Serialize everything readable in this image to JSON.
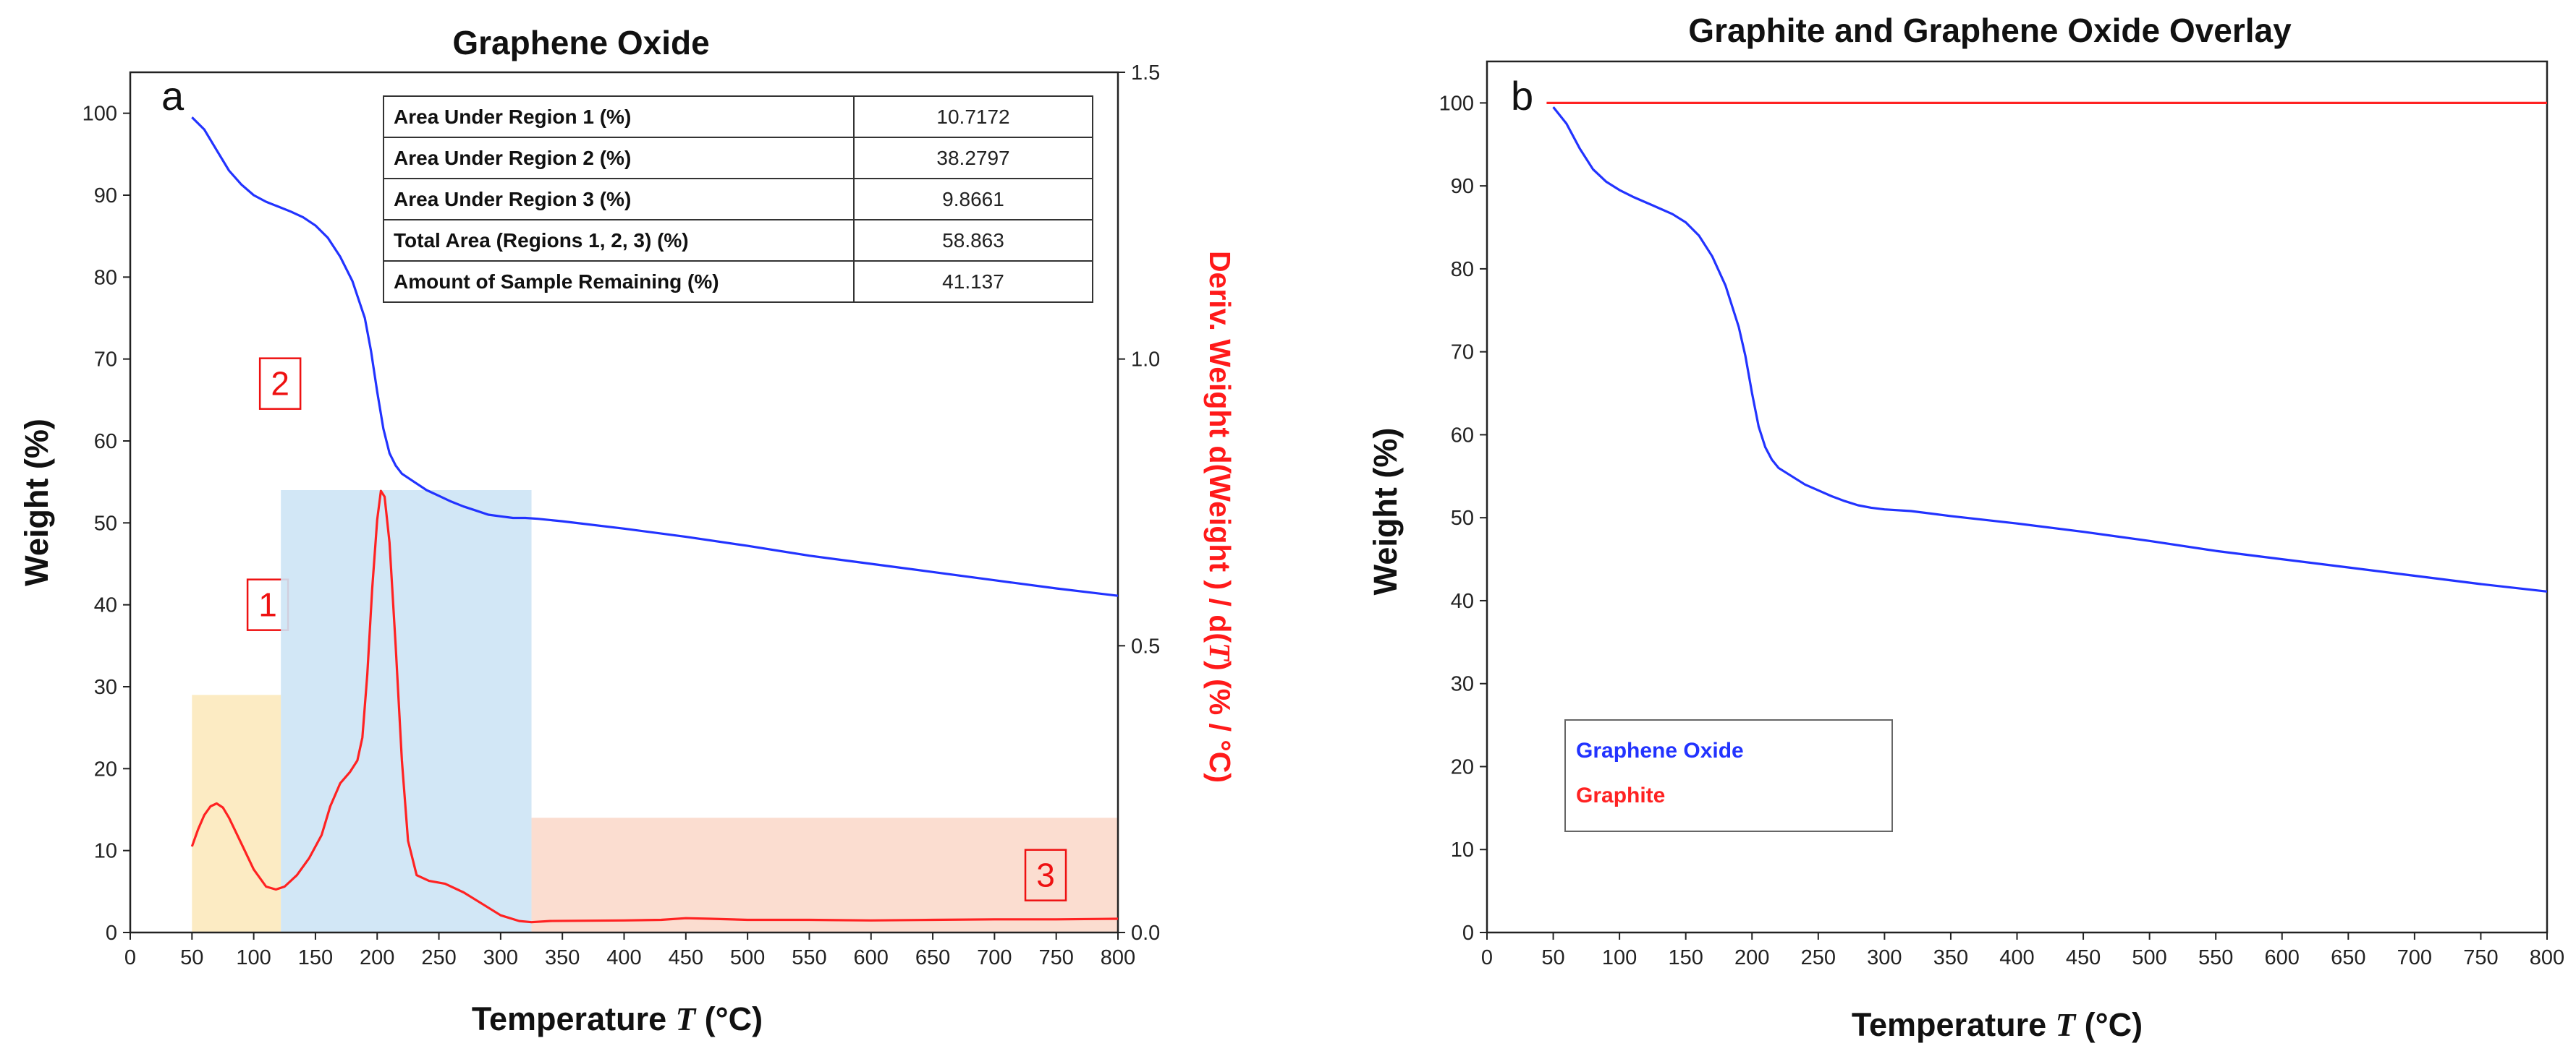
{
  "chart_data": [
    {
      "panel_label": "a",
      "type": "line",
      "title": "Graphene Oxide",
      "xlabel_prefix": "Temperature",
      "xlabel_symbol": "T",
      "xlabel_suffix": "(°C)",
      "ylabel": "Weight  (%)",
      "y2label_parts": [
        "Deriv. Weight d(Weight ) / d(",
        "T",
        ")  (% / °C)"
      ],
      "xlim": [
        0,
        800
      ],
      "ylim": [
        0,
        105
      ],
      "y2lim": [
        0,
        1.5
      ],
      "x_ticks": [
        0,
        50,
        100,
        150,
        200,
        250,
        300,
        350,
        400,
        450,
        500,
        550,
        600,
        650,
        700,
        750,
        800
      ],
      "y_ticks": [
        0,
        10,
        20,
        30,
        40,
        50,
        60,
        70,
        80,
        90,
        100
      ],
      "y2_ticks": [
        "0.0",
        "0.5",
        "1.0",
        "1.5"
      ],
      "series": [
        {
          "name": "Weight",
          "axis": "left",
          "color": "#2233ff",
          "points": [
            [
              50,
              99.5
            ],
            [
              60,
              98
            ],
            [
              70,
              95.5
            ],
            [
              80,
              93
            ],
            [
              90,
              91.3
            ],
            [
              100,
              90
            ],
            [
              110,
              89.2
            ],
            [
              120,
              88.6
            ],
            [
              130,
              88
            ],
            [
              140,
              87.3
            ],
            [
              150,
              86.3
            ],
            [
              160,
              84.8
            ],
            [
              170,
              82.5
            ],
            [
              180,
              79.5
            ],
            [
              190,
              75
            ],
            [
              195,
              71
            ],
            [
              200,
              66
            ],
            [
              205,
              61.5
            ],
            [
              210,
              58.5
            ],
            [
              215,
              57
            ],
            [
              220,
              56
            ],
            [
              230,
              55
            ],
            [
              240,
              54
            ],
            [
              250,
              53.3
            ],
            [
              260,
              52.6
            ],
            [
              270,
              52
            ],
            [
              280,
              51.5
            ],
            [
              290,
              51
            ],
            [
              300,
              50.8
            ],
            [
              310,
              50.6
            ],
            [
              320,
              50.6
            ],
            [
              330,
              50.5
            ],
            [
              350,
              50.2
            ],
            [
              400,
              49.3
            ],
            [
              450,
              48.3
            ],
            [
              500,
              47.2
            ],
            [
              550,
              46
            ],
            [
              600,
              45
            ],
            [
              650,
              44
            ],
            [
              700,
              43
            ],
            [
              750,
              42
            ],
            [
              800,
              41.1
            ]
          ]
        },
        {
          "name": "Deriv. Weight",
          "axis": "right",
          "color": "#ff2222",
          "points": [
            [
              50,
              0.15
            ],
            [
              55,
              0.18
            ],
            [
              60,
              0.205
            ],
            [
              65,
              0.22
            ],
            [
              70,
              0.225
            ],
            [
              75,
              0.218
            ],
            [
              80,
              0.2
            ],
            [
              90,
              0.155
            ],
            [
              100,
              0.11
            ],
            [
              110,
              0.08
            ],
            [
              118,
              0.075
            ],
            [
              125,
              0.08
            ],
            [
              135,
              0.1
            ],
            [
              145,
              0.13
            ],
            [
              155,
              0.17
            ],
            [
              162,
              0.22
            ],
            [
              170,
              0.26
            ],
            [
              178,
              0.28
            ],
            [
              184,
              0.3
            ],
            [
              188,
              0.34
            ],
            [
              192,
              0.45
            ],
            [
              196,
              0.6
            ],
            [
              200,
              0.72
            ],
            [
              203,
              0.77
            ],
            [
              206,
              0.76
            ],
            [
              210,
              0.68
            ],
            [
              215,
              0.5
            ],
            [
              220,
              0.3
            ],
            [
              225,
              0.16
            ],
            [
              232,
              0.1
            ],
            [
              242,
              0.09
            ],
            [
              255,
              0.085
            ],
            [
              270,
              0.07
            ],
            [
              285,
              0.05
            ],
            [
              300,
              0.03
            ],
            [
              315,
              0.02
            ],
            [
              325,
              0.018
            ],
            [
              340,
              0.02
            ],
            [
              400,
              0.021
            ],
            [
              430,
              0.022
            ],
            [
              450,
              0.025
            ],
            [
              470,
              0.024
            ],
            [
              500,
              0.022
            ],
            [
              550,
              0.022
            ],
            [
              600,
              0.021
            ],
            [
              650,
              0.022
            ],
            [
              700,
              0.023
            ],
            [
              750,
              0.023
            ],
            [
              800,
              0.024
            ]
          ]
        }
      ],
      "regions": [
        {
          "label": "1",
          "x_start": 50,
          "x_end": 122,
          "y_top": 29,
          "color": "#fce9bd"
        },
        {
          "label": "2",
          "x_start": 122,
          "x_end": 325,
          "y_top": 54,
          "color": "#cde4f5"
        },
        {
          "label": "3",
          "x_start": 325,
          "x_end": 800,
          "y_top": 14,
          "color": "#fbd9cb"
        }
      ],
      "table": [
        {
          "label": "Area Under Region 1 (%)",
          "value": "10.7172"
        },
        {
          "label": "Area Under Region 2 (%)",
          "value": "38.2797"
        },
        {
          "label": "Area Under Region 3 (%)",
          "value": "9.8661"
        },
        {
          "label": "Total Area (Regions 1, 2, 3) (%)",
          "value": "58.863"
        },
        {
          "label": "Amount of Sample Remaining (%)",
          "value": "41.137"
        }
      ]
    },
    {
      "panel_label": "b",
      "type": "line",
      "title": "Graphite and Graphene Oxide Overlay",
      "xlabel_prefix": "Temperature",
      "xlabel_symbol": "T",
      "xlabel_suffix": "(°C)",
      "ylabel": "Weight  (%)",
      "xlim": [
        0,
        800
      ],
      "ylim": [
        0,
        105
      ],
      "x_ticks": [
        0,
        50,
        100,
        150,
        200,
        250,
        300,
        350,
        400,
        450,
        500,
        550,
        600,
        650,
        700,
        750,
        800
      ],
      "y_ticks": [
        0,
        10,
        20,
        30,
        40,
        50,
        60,
        70,
        80,
        90,
        100
      ],
      "legend_position": "lower-left",
      "series": [
        {
          "name": "Graphene Oxide",
          "color": "#2233ff",
          "points": [
            [
              50,
              99.5
            ],
            [
              60,
              97.5
            ],
            [
              70,
              94.5
            ],
            [
              80,
              92
            ],
            [
              90,
              90.5
            ],
            [
              100,
              89.5
            ],
            [
              110,
              88.7
            ],
            [
              120,
              88
            ],
            [
              130,
              87.3
            ],
            [
              140,
              86.6
            ],
            [
              150,
              85.6
            ],
            [
              160,
              84
            ],
            [
              170,
              81.5
            ],
            [
              180,
              78
            ],
            [
              190,
              73
            ],
            [
              195,
              69.5
            ],
            [
              200,
              65
            ],
            [
              205,
              61
            ],
            [
              210,
              58.5
            ],
            [
              215,
              57
            ],
            [
              220,
              56
            ],
            [
              230,
              55
            ],
            [
              240,
              54
            ],
            [
              250,
              53.3
            ],
            [
              260,
              52.6
            ],
            [
              270,
              52
            ],
            [
              280,
              51.5
            ],
            [
              290,
              51.2
            ],
            [
              300,
              51
            ],
            [
              320,
              50.8
            ],
            [
              350,
              50.2
            ],
            [
              400,
              49.3
            ],
            [
              450,
              48.3
            ],
            [
              500,
              47.2
            ],
            [
              550,
              46
            ],
            [
              600,
              45
            ],
            [
              650,
              44
            ],
            [
              700,
              43
            ],
            [
              750,
              42
            ],
            [
              800,
              41.1
            ]
          ]
        },
        {
          "name": "Graphite",
          "color": "#ff2222",
          "points": [
            [
              45,
              100
            ],
            [
              800,
              100
            ]
          ]
        }
      ]
    }
  ]
}
